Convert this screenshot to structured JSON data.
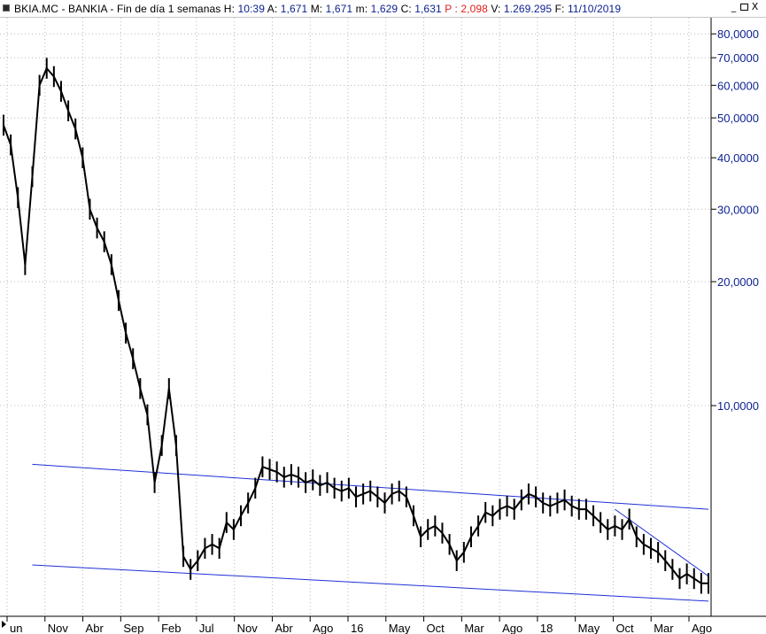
{
  "header": {
    "symbol": "BKIA.MC",
    "name": "BANKIA",
    "description": "Fin de día 1 semanas",
    "hora_label": "H:",
    "hora": "10:39",
    "apertura_label": "A:",
    "apertura": "1,671",
    "maximo_label": "M:",
    "maximo": "1,671",
    "minimo_label": "m:",
    "minimo": "1,629",
    "cierre_label": "C:",
    "cierre": "1,631",
    "p_label": "P :",
    "p": "2,098",
    "volumen_label": "V:",
    "volumen": "1.269.295",
    "fecha_label": "F:",
    "fecha": "11/10/2019",
    "window_buttons": [
      "_",
      "□",
      "X"
    ]
  },
  "colors": {
    "price": "#000000",
    "channel": "#1f2fd6",
    "axis_text": "#0a1f8f",
    "background": "#ffffff"
  },
  "chart_data": {
    "type": "line",
    "scale": "log",
    "ylim": [
      3.5,
      85
    ],
    "y_ticks": [
      {
        "value": 80,
        "label": "80,0000"
      },
      {
        "value": 70,
        "label": "70,0000"
      },
      {
        "value": 60,
        "label": "60,0000"
      },
      {
        "value": 50,
        "label": "50,0000"
      },
      {
        "value": 40,
        "label": "40,0000"
      },
      {
        "value": 30,
        "label": "30,0000"
      },
      {
        "value": 20,
        "label": "20,0000"
      },
      {
        "value": 10,
        "label": "10,0000"
      }
    ],
    "x_ticks": [
      "un",
      "Nov",
      "Abr",
      "Sep",
      "Feb",
      "Jul",
      "Nov",
      "Abr",
      "Ago",
      "16",
      "May",
      "Oct",
      "Mar",
      "Ago",
      "18",
      "May",
      "Oct",
      "Mar",
      "Ago"
    ],
    "grid": true,
    "series": [
      {
        "values": [
          48,
          43,
          32,
          22,
          36,
          60,
          66,
          63,
          58,
          52,
          47,
          40,
          30,
          27,
          25,
          22,
          18,
          15,
          13,
          11,
          9.5,
          6.5,
          8,
          11,
          8,
          4.3,
          4.0,
          4.2,
          4.5,
          4.6,
          4.5,
          5.2,
          5.0,
          5.4,
          5.8,
          6.3,
          7.1,
          7.0,
          6.9,
          6.7,
          6.8,
          6.7,
          6.5,
          6.6,
          6.4,
          6.5,
          6.3,
          6.2,
          6.3,
          6.0,
          6.1,
          6.2,
          6.0,
          5.8,
          6.1,
          6.2,
          6.0,
          5.4,
          4.8,
          5.0,
          5.1,
          4.9,
          4.6,
          4.2,
          4.4,
          4.8,
          5.1,
          5.5,
          5.4,
          5.6,
          5.7,
          5.6,
          5.9,
          6.1,
          6.0,
          5.8,
          5.7,
          5.8,
          5.9,
          5.7,
          5.6,
          5.6,
          5.4,
          5.2,
          5.0,
          5.1,
          5.0,
          5.3,
          4.8,
          4.6,
          4.5,
          4.4,
          4.2,
          4.0,
          3.8,
          3.9,
          3.8,
          3.7,
          3.7
        ]
      }
    ],
    "channel_lines": [
      {
        "from": [
          4,
          7.2
        ],
        "to": [
          98,
          5.6
        ]
      },
      {
        "from": [
          4,
          4.1
        ],
        "to": [
          98,
          3.35
        ]
      },
      {
        "from": [
          85,
          5.6
        ],
        "to": [
          98,
          3.85
        ]
      }
    ]
  }
}
